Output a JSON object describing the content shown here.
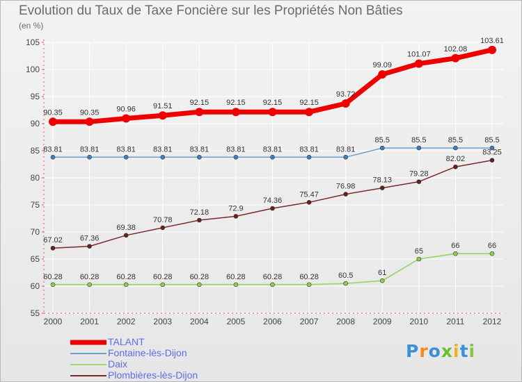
{
  "title": "Evolution du Taux de Taxe Foncière sur les Propriétés Non Bâties",
  "subtitle": "(en %)",
  "colors": {
    "axis": "#e05555",
    "grid": "#ffffff",
    "tick_text": "#444444",
    "legend_text": "#5b6ee6"
  },
  "chart_data": {
    "type": "line",
    "title": "Evolution du Taux de Taxe Foncière sur les Propriétés Non Bâties",
    "ylabel": "(en %)",
    "xlabel": "",
    "x": [
      "2000",
      "2001",
      "2002",
      "2003",
      "2004",
      "2005",
      "2006",
      "2007",
      "2008",
      "2009",
      "2010",
      "2011",
      "2012"
    ],
    "ylim": [
      55,
      105
    ],
    "yticks": [
      55,
      60,
      65,
      70,
      75,
      80,
      85,
      90,
      95,
      100,
      105
    ],
    "grid": true,
    "legend_position": "bottom-left",
    "series": [
      {
        "name": "TALANT",
        "color": "#ee0000",
        "marker_color": "#ee0000",
        "values": [
          90.35,
          90.35,
          90.96,
          91.51,
          92.15,
          92.15,
          92.15,
          92.15,
          93.72,
          99.09,
          101.07,
          102.08,
          103.61
        ],
        "labels": [
          "90.35",
          "90.35",
          "90.96",
          "91.51",
          "92.15",
          "92.15",
          "92.15",
          "92.15",
          "93.72",
          "99.09",
          "101.07",
          "102.08",
          "103.61"
        ]
      },
      {
        "name": "Fontaine-lès-Dijon",
        "color": "#6b9fcf",
        "marker_color": "#3f7fbf",
        "values": [
          83.81,
          83.81,
          83.81,
          83.81,
          83.81,
          83.81,
          83.81,
          83.81,
          83.81,
          85.5,
          85.5,
          85.5,
          85.5
        ],
        "labels": [
          "83.81",
          "83.81",
          "83.81",
          "83.81",
          "83.81",
          "83.81",
          "83.81",
          "83.81",
          "83.81",
          "85.5",
          "85.5",
          "85.5",
          "85.5"
        ]
      },
      {
        "name": "Daix",
        "color": "#9fd56f",
        "marker_color": "#8ed04e",
        "values": [
          60.28,
          60.28,
          60.28,
          60.28,
          60.28,
          60.28,
          60.28,
          60.28,
          60.5,
          61,
          65,
          66,
          66
        ],
        "labels": [
          "60.28",
          "60.28",
          "60.28",
          "60.28",
          "60.28",
          "60.28",
          "60.28",
          "60.28",
          "60.5",
          "61",
          "65",
          "66",
          "66"
        ]
      },
      {
        "name": "Plombières-lès-Dijon",
        "color": "#7a2a2a",
        "marker_color": "#6a1f1f",
        "values": [
          67.02,
          67.36,
          69.38,
          70.78,
          72.18,
          72.9,
          74.36,
          75.47,
          76.98,
          78.13,
          79.28,
          82.02,
          83.25
        ],
        "labels": [
          "67.02",
          "67.36",
          "69.38",
          "70.78",
          "72.18",
          "72.9",
          "74.36",
          "75.47",
          "76.98",
          "78.13",
          "79.28",
          "82.02",
          "83.25"
        ]
      }
    ]
  },
  "logo": {
    "text": "Proxiti",
    "letter_colors": [
      "#3b8fd6",
      "#f08a1c",
      "#3b8fd6",
      "#6cbf2a",
      "#e9b21e",
      "#3b8fd6",
      "#8ac43f"
    ]
  }
}
